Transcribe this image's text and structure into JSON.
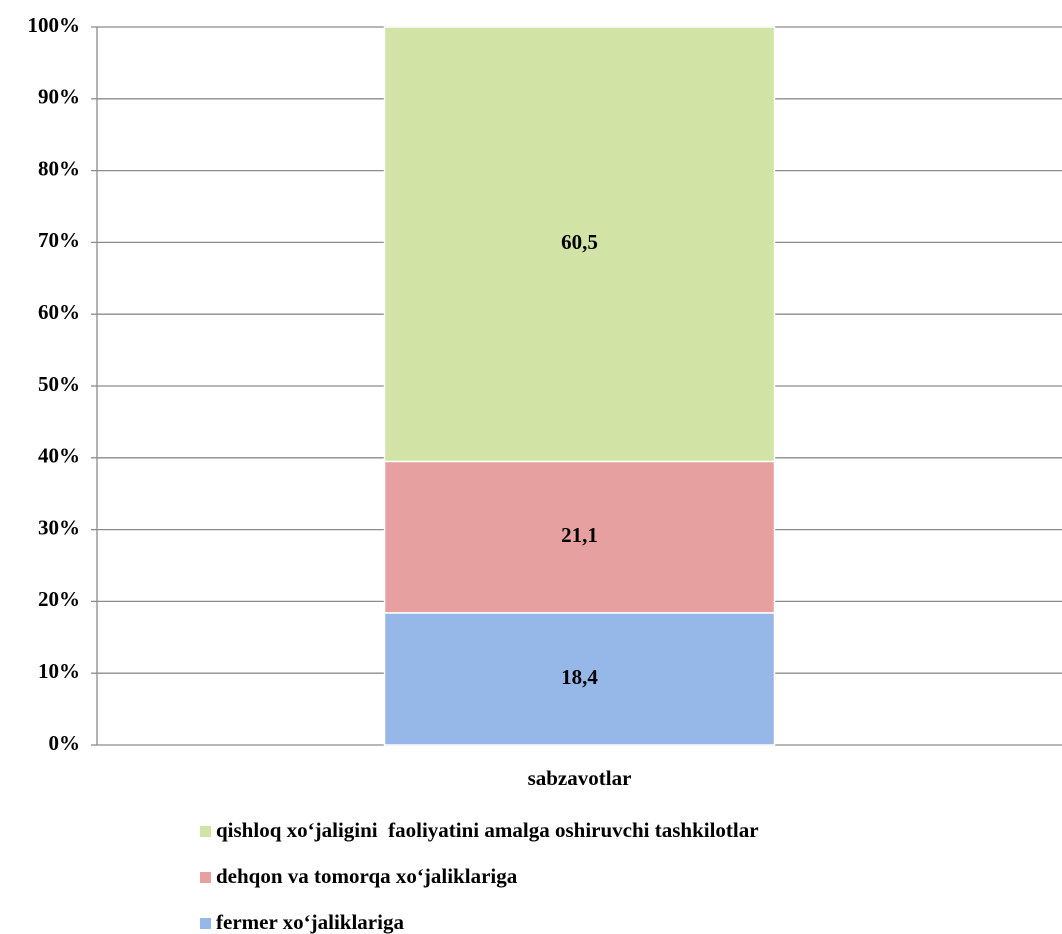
{
  "chart_data": {
    "type": "stacked_bar_percent",
    "categories": [
      "sabzavotlar"
    ],
    "series": [
      {
        "name": "fermer xo‘jaliklariga",
        "color": "#95b8e8",
        "values": [
          18.4
        ],
        "value_labels": [
          "18,4"
        ]
      },
      {
        "name": "dehqon va tomorqa xo‘jaliklariga",
        "color": "#e6a0a0",
        "values": [
          21.1
        ],
        "value_labels": [
          "21,1"
        ]
      },
      {
        "name": "qishloq xo‘jaligini  faoliyatini amalga oshiruvchi tashkilotlar",
        "color": "#d2e3a6",
        "values": [
          60.5
        ],
        "value_labels": [
          "60,5"
        ]
      }
    ],
    "ylim": [
      0,
      100
    ],
    "yticks": [
      {
        "value": 0,
        "label": "0%"
      },
      {
        "value": 10,
        "label": "10%"
      },
      {
        "value": 20,
        "label": "20%"
      },
      {
        "value": 30,
        "label": "30%"
      },
      {
        "value": 40,
        "label": "40%"
      },
      {
        "value": 50,
        "label": "50%"
      },
      {
        "value": 60,
        "label": "60%"
      },
      {
        "value": 70,
        "label": "70%"
      },
      {
        "value": 80,
        "label": "80%"
      },
      {
        "value": 90,
        "label": "90%"
      },
      {
        "value": 100,
        "label": "100%"
      }
    ],
    "grid": true,
    "legend": "bottom"
  }
}
